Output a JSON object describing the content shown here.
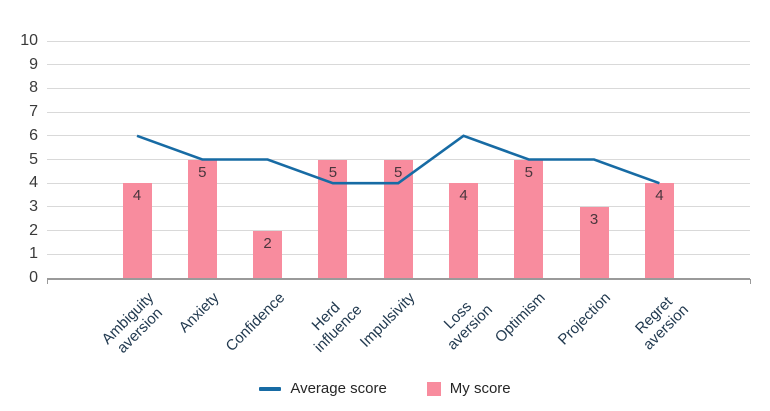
{
  "chart_data": {
    "type": "bar",
    "title": "",
    "categories": [
      "Ambiguity\naversion",
      "Anxiety",
      "Confidence",
      "Herd\ninfluence",
      "Impulsivity",
      "Loss\naversion",
      "Optimism",
      "Projection",
      "Regret\naversion"
    ],
    "series": [
      {
        "name": "Average score",
        "type": "line",
        "values": [
          6,
          5,
          5,
          4,
          4,
          6,
          5,
          5,
          4
        ],
        "color": "#176ba4"
      },
      {
        "name": "My score",
        "type": "bar",
        "values": [
          4,
          5,
          2,
          5,
          5,
          4,
          5,
          3,
          4
        ],
        "color": "#f88c9e",
        "data_labels": true
      }
    ],
    "xlabel": "",
    "ylabel": "",
    "ylim": [
      0,
      10
    ],
    "yticks": [
      0,
      1,
      2,
      3,
      4,
      5,
      6,
      7,
      8,
      9,
      10
    ],
    "grid": true,
    "legend_position": "bottom",
    "colors": {
      "gridline": "#d9d9d9",
      "axis_line": "#9a9a9a",
      "y_tick_label": "#3a3a3a",
      "x_tick_label": "#21394f",
      "bar_data_label": "#4a363d",
      "legend_text": "#262626"
    }
  }
}
